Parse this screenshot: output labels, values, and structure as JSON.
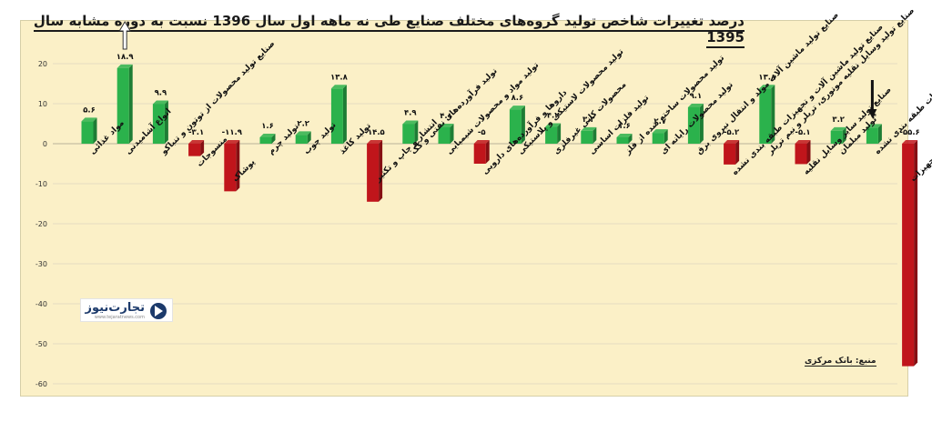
{
  "title": "درصد تغییرات شاخص تولید گروه‌های مختلف صنایع طی نه ماهه اول سال 1396 نسبت به دوره مشابه سال 1395",
  "source": "منبع: بانک مرکزی",
  "logo": {
    "text": "تجارت‌نیوز",
    "subtext": "www.tejaratnews.com"
  },
  "colors": {
    "positive": "#2bb24c",
    "negative": "#c0151b",
    "frame": "#fbf0c7"
  },
  "chart_data": {
    "type": "bar",
    "yticks": [
      20,
      10,
      0,
      -10,
      -20,
      -30,
      -40,
      -50,
      -60
    ],
    "ylim": [
      -60,
      22
    ],
    "grid": true,
    "categories": [
      "مواد غذائی",
      "انواع آشامیدنی",
      "صنایع تولید محصولات از توتون و تنباکو",
      "منسوجات",
      "پوشاک",
      "تولید چرم",
      "تولید چوب",
      "تولید کاغذ",
      "انتشار و چاپ و تکثیر",
      "تولید فرآورده‌های نفتی و کک",
      "تولید مواد و محصولات شیمیایی",
      "داروها و فرآورده‌های دارویی",
      "تولید محصولات لاستیکی و پلاستیکی",
      "محصولات کانی غیرفلزی",
      "تولید فلزات اساسی",
      "تولید محصولات ساخته شده از فلز",
      "تولید محصولات رایانه ای",
      "صنایع تولید ماشین آلات مولد و انتقال نیروی برق",
      "صنایع تولید ماشین آلات و تجهیزات طبقه بندی نشده",
      "صنایع تولید وسایل نقلیه موتوری، تریلر و نیم تریلر",
      "صنایع تولید سایر وسایل نقلیه",
      "تولید مبلمان",
      "تولید سایر مصنوعات طبقه بندی نشده",
      "تعمیر و نصب ماشین آلات و تجهیزات"
    ],
    "values": [
      5.6,
      18.9,
      9.9,
      -3.1,
      -11.9,
      1.6,
      2.2,
      13.8,
      -14.5,
      4.9,
      4.1,
      -5,
      8.6,
      4.2,
      3.2,
      1.6,
      2.7,
      9.1,
      -5.2,
      13.8,
      -5.1,
      3.2,
      4,
      -55.6
    ],
    "value_labels": [
      "۵.۶",
      "۱۸.۹",
      "۹.۹",
      "-۳.۱",
      "-۱۱.۹",
      "۱.۶",
      "۲.۲",
      "۱۳.۸",
      "-۱۴.۵",
      "۴.۹",
      "۴.۱",
      "-۵",
      "۸.۶",
      "۴.۲",
      "۳.۲",
      "۱.۶",
      "۲.۷",
      "۹.۱",
      "-۵.۲",
      "۱۳.۸",
      "-۵.۱",
      "۳.۲",
      "۴",
      "-۵۵.۶"
    ],
    "annotations": [
      {
        "type": "arrow-up-outline",
        "category_index": 1
      },
      {
        "type": "arrow-down",
        "category_index": 22
      }
    ]
  }
}
